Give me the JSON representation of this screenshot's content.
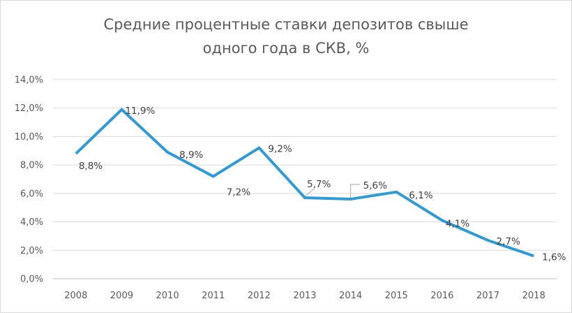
{
  "chart_data": {
    "type": "line",
    "title_lines": [
      "Средние процентные ставки депозитов свыше",
      "одного года в СКВ, %"
    ],
    "categories": [
      "2008",
      "2009",
      "2010",
      "2011",
      "2012",
      "2013",
      "2014",
      "2015",
      "2016",
      "2017",
      "2018"
    ],
    "series": [
      {
        "values": [
          8.8,
          11.9,
          8.9,
          7.2,
          9.2,
          5.7,
          5.6,
          6.1,
          4.1,
          2.7,
          1.6
        ],
        "data_labels": [
          "8,8%",
          "11,9%",
          "8,9%",
          "7,2%",
          "9,2%",
          "5,7%",
          "5,6%",
          "6,1%",
          "4,1%",
          "2,7%",
          "1,6%"
        ],
        "color": "#2e9bd6"
      }
    ],
    "ylim": [
      0,
      14
    ],
    "yticks": [
      0,
      2,
      4,
      6,
      8,
      10,
      12,
      14
    ],
    "ytick_labels": [
      "0,0%",
      "2,0%",
      "4,0%",
      "6,0%",
      "8,0%",
      "10,0%",
      "12,0%",
      "14,0%"
    ],
    "grid": true,
    "legend": "none",
    "colors": {
      "grid": "#d9d9d9",
      "axis": "#bfbfbf",
      "leader": "#a6a6a6"
    }
  }
}
